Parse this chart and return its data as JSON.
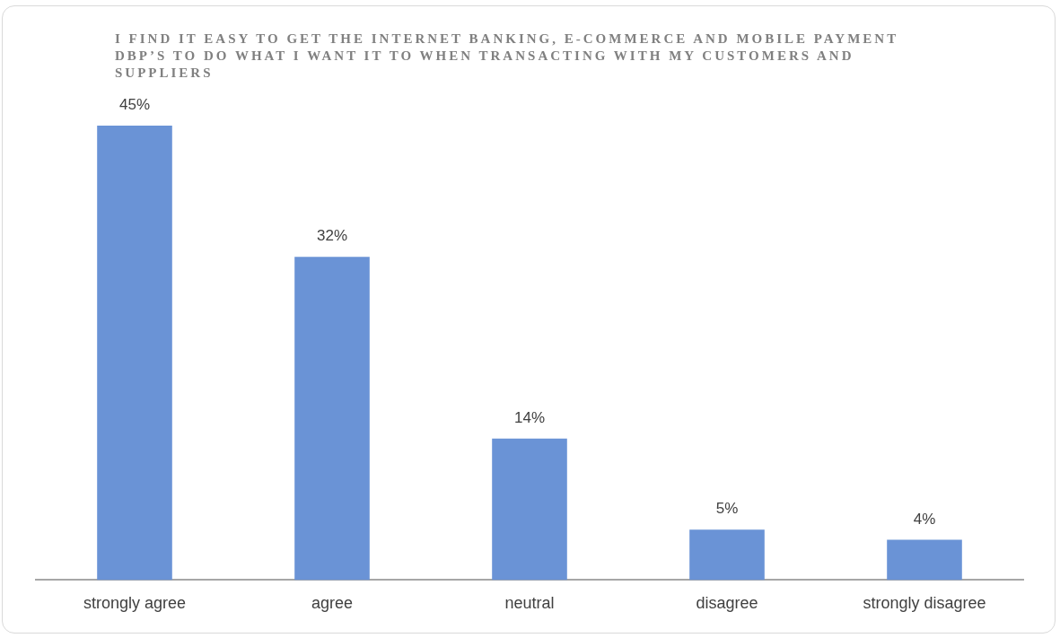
{
  "chart_data": {
    "type": "bar",
    "title": "I FIND IT EASY TO GET THE INTERNET BANKING, E-COMMERCE AND MOBILE PAYMENT DBP’S TO DO WHAT I WANT IT TO WHEN TRANSACTING WITH MY CUSTOMERS AND SUPPLIERS",
    "categories": [
      "strongly agree",
      "agree",
      "neutral",
      "disagree",
      "strongly disagree"
    ],
    "values": [
      45,
      32,
      14,
      5,
      4
    ],
    "value_labels": [
      "45%",
      "32%",
      "14%",
      "5%",
      "4%"
    ],
    "color": "#6a93d6",
    "grid": false,
    "legend": false
  }
}
